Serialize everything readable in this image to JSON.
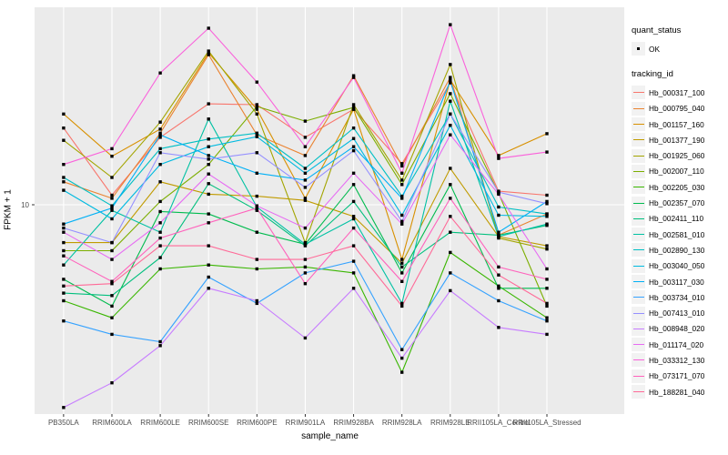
{
  "figure": {
    "background": "#FFFFFF",
    "panel_background": "#EBEBEB",
    "gridline_color": "#FFFFFF",
    "tick_mark_color": "#333333",
    "tick_label_color": "#4D4D4D",
    "point_color": "#000000"
  },
  "axes": {
    "x_title": "sample_name",
    "y_title": "FPKM + 1",
    "y_break_label": "10"
  },
  "legend": {
    "quant_status": {
      "title": "quant_status",
      "items": [
        {
          "label": "OK",
          "marker": "black-square-point"
        }
      ]
    },
    "tracking_id": {
      "title": "tracking_id"
    }
  },
  "chart_data": {
    "type": "line",
    "title": "",
    "xlabel": "sample_name",
    "ylabel": "FPKM + 1",
    "y_scale": "log10",
    "y_breaks": [
      10
    ],
    "legend_position": "right",
    "grid": "white major gridlines on gray panel",
    "marker": "small black square (quant_status = OK) at every point",
    "categories": [
      "PB350LA",
      "RRIM600LA",
      "RRIM600LE",
      "RRIM600SE",
      "RRIM600PE",
      "RRIM901LA",
      "RRIM928BA",
      "RRIM928LA",
      "RRIM928LE",
      "RRII105LA_Control",
      "RRII105LA_Stressed"
    ],
    "series": [
      {
        "name": "Hb_000317_100",
        "color": "#F8766D",
        "values": [
          20.0,
          10.9,
          18.4,
          24.9,
          24.7,
          18.4,
          23.7,
          14.5,
          30.1,
          11.3,
          10.9
        ]
      },
      {
        "name": "Hb_000795_040",
        "color": "#EA8331",
        "values": [
          12.3,
          10.6,
          19.1,
          38.8,
          18.8,
          15.6,
          32.1,
          14.2,
          31.6,
          7.6,
          9.2
        ]
      },
      {
        "name": "Hb_001157_160",
        "color": "#D89000",
        "values": [
          22.7,
          15.5,
          19.8,
          39.5,
          23.7,
          10.6,
          23.7,
          6.1,
          30.9,
          15.6,
          19.0
        ]
      },
      {
        "name": "Hb_001377_190",
        "color": "#C09B00",
        "values": [
          7.1,
          7.1,
          12.3,
          11.0,
          10.8,
          10.4,
          9.0,
          5.9,
          13.9,
          7.5,
          6.9
        ]
      },
      {
        "name": "Hb_001925_060",
        "color": "#A3A500",
        "values": [
          17.9,
          12.8,
          21.1,
          40.1,
          22.7,
          7.1,
          24.7,
          12.5,
          35.5,
          7.4,
          6.7
        ]
      },
      {
        "name": "Hb_002007_110",
        "color": "#7CAE00",
        "values": [
          6.6,
          6.6,
          10.3,
          14.4,
          24.3,
          21.3,
          24.1,
          12.0,
          27.3,
          11.1,
          4.0
        ]
      },
      {
        "name": "Hb_002205_030",
        "color": "#39B600",
        "values": [
          4.2,
          3.6,
          5.6,
          5.8,
          5.6,
          5.7,
          5.4,
          2.2,
          6.5,
          4.8,
          3.6
        ]
      },
      {
        "name": "Hb_002357_070",
        "color": "#00BB4E",
        "values": [
          5.1,
          4.0,
          9.4,
          9.2,
          7.8,
          7.0,
          12.0,
          5.4,
          12.0,
          4.7,
          4.7
        ]
      },
      {
        "name": "Hb_002411_110",
        "color": "#00BF7D",
        "values": [
          4.5,
          4.4,
          6.2,
          12.1,
          9.5,
          6.9,
          10.3,
          5.7,
          7.8,
          7.6,
          8.3
        ]
      },
      {
        "name": "Hb_002581_010",
        "color": "#00C1A3",
        "values": [
          5.8,
          9.5,
          7.8,
          21.7,
          9.8,
          7.0,
          8.8,
          4.1,
          25.5,
          7.5,
          8.4
        ]
      },
      {
        "name": "Hb_002890_130",
        "color": "#00BFC4",
        "values": [
          12.8,
          9.9,
          16.6,
          18.1,
          19.1,
          13.9,
          20.0,
          10.8,
          22.7,
          9.8,
          9.2
        ]
      },
      {
        "name": "Hb_003040_050",
        "color": "#00BAE0",
        "values": [
          11.4,
          8.8,
          14.4,
          16.9,
          18.5,
          13.3,
          18.2,
          9.1,
          20.5,
          9.1,
          9.0
        ]
      },
      {
        "name": "Hb_003117_030",
        "color": "#00B0F6",
        "values": [
          8.4,
          9.7,
          18.8,
          15.6,
          13.3,
          12.5,
          16.9,
          10.6,
          30.6,
          7.8,
          10.3
        ]
      },
      {
        "name": "Hb_003734_010",
        "color": "#35A2FF",
        "values": [
          3.5,
          3.1,
          2.9,
          5.2,
          4.1,
          5.4,
          6.0,
          2.7,
          5.4,
          4.2,
          3.5
        ]
      },
      {
        "name": "Hb_007413_010",
        "color": "#9590FF",
        "values": [
          8.1,
          7.1,
          16.0,
          15.1,
          16.0,
          11.7,
          16.3,
          8.6,
          22.7,
          11.2,
          10.1
        ]
      },
      {
        "name": "Hb_008948_020",
        "color": "#C77CFF",
        "values": [
          1.6,
          2.0,
          2.8,
          4.7,
          4.2,
          3.0,
          4.7,
          2.5,
          4.6,
          3.3,
          3.1
        ]
      },
      {
        "name": "Hb_011174_020",
        "color": "#E76BF3",
        "values": [
          7.8,
          6.1,
          8.5,
          13.2,
          9.9,
          8.1,
          13.3,
          8.4,
          18.8,
          11.0,
          5.6
        ]
      },
      {
        "name": "Hb_033312_130",
        "color": "#FA62DB",
        "values": [
          14.4,
          16.6,
          32.9,
          49.3,
          30.3,
          16.9,
          31.6,
          13.3,
          50.9,
          15.2,
          16.1
        ]
      },
      {
        "name": "Hb_073171_070",
        "color": "#FF62BC",
        "values": [
          6.3,
          5.0,
          7.4,
          8.5,
          9.7,
          4.9,
          8.1,
          5.0,
          10.6,
          5.7,
          5.1
        ]
      },
      {
        "name": "Hb_188281_040",
        "color": "#FF6A98",
        "values": [
          4.8,
          4.9,
          6.9,
          6.9,
          6.1,
          6.1,
          6.9,
          4.0,
          9.0,
          5.3,
          4.1
        ]
      }
    ]
  }
}
